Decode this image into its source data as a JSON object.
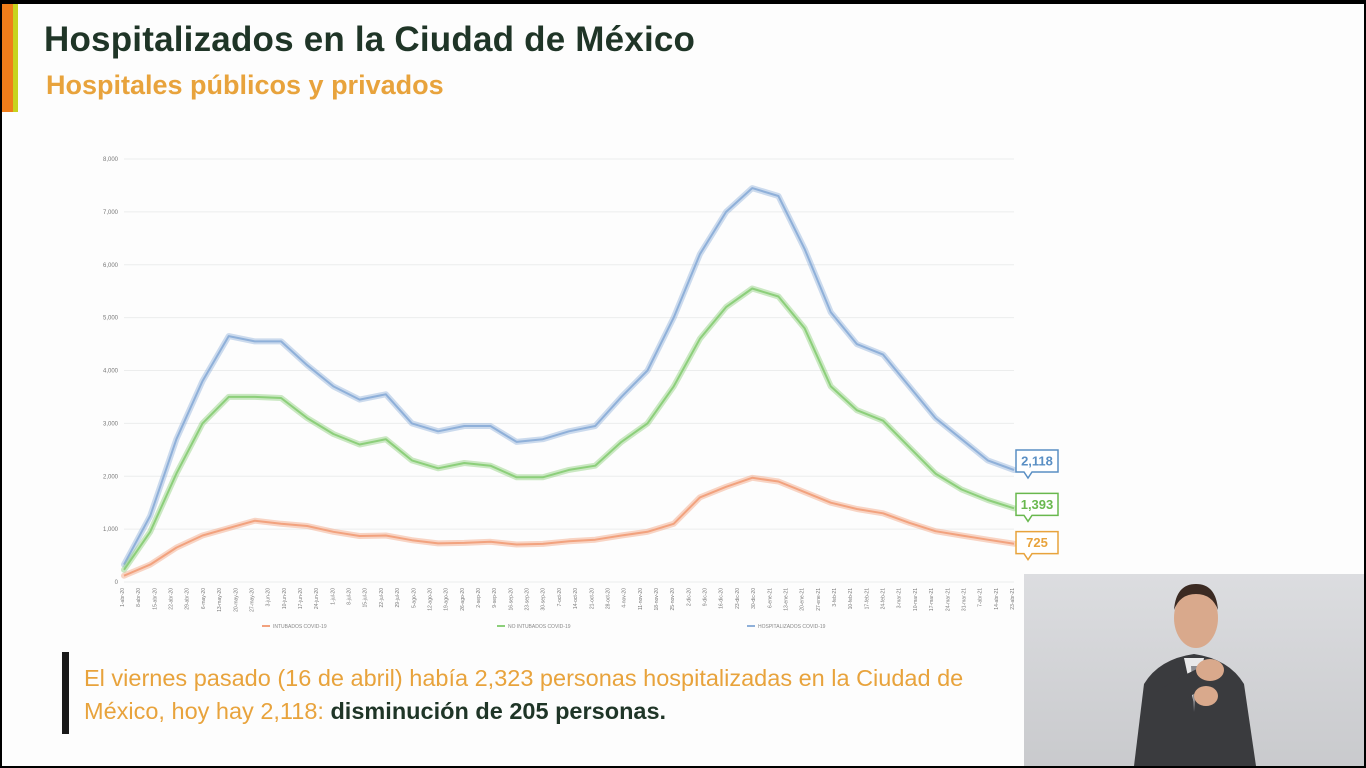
{
  "header": {
    "title": "Hospitalizados en la Ciudad de México",
    "subtitle": "Hospitales públicos y privados"
  },
  "callout": {
    "text_main": "El viernes pasado (16 de abril) había 2,323 personas hospitalizadas en la Ciudad de México, hoy hay 2,118: ",
    "text_strong": "disminución de 205 personas."
  },
  "colors": {
    "hospitalizados": "#8fb0d9",
    "no_intubados": "#8ccf7a",
    "intubados": "#f2a27e",
    "label_hosp": "#5a8fc4",
    "label_no_int": "#69b84e",
    "label_int": "#e8a33c"
  },
  "interpreter": {
    "icon": "sign-language-interpreter-video"
  },
  "chart_data": {
    "type": "line",
    "ylim": [
      0,
      8000
    ],
    "yticks": [
      0,
      1000,
      2000,
      3000,
      4000,
      5000,
      6000,
      7000,
      8000
    ],
    "ytick_labels": [
      "0",
      "1,000",
      "2,000",
      "3,000",
      "4,000",
      "5,000",
      "6,000",
      "7,000",
      "8,000"
    ],
    "xticks": [
      "1-abr-20",
      "8-abr-20",
      "15-abr-20",
      "22-abr-20",
      "29-abr-20",
      "6-may-20",
      "13-may-20",
      "20-may-20",
      "27-may-20",
      "3-jun-20",
      "10-jun-20",
      "17-jun-20",
      "24-jun-20",
      "1-jul-20",
      "8-jul-20",
      "15-jul-20",
      "22-jul-20",
      "29-jul-20",
      "5-ago-20",
      "12-ago-20",
      "19-ago-20",
      "26-ago-20",
      "2-sep-20",
      "9-sep-20",
      "16-sep-20",
      "23-sep-20",
      "30-sep-20",
      "7-oct-20",
      "14-oct-20",
      "21-oct-20",
      "28-oct-20",
      "4-nov-20",
      "11-nov-20",
      "18-nov-20",
      "25-nov-20",
      "2-dic-20",
      "9-dic-20",
      "16-dic-20",
      "23-dic-20",
      "30-dic-20",
      "6-ene-21",
      "13-ene-21",
      "20-ene-21",
      "27-ene-21",
      "3-feb-21",
      "10-feb-21",
      "17-feb-21",
      "24-feb-21",
      "3-mar-21",
      "10-mar-21",
      "17-mar-21",
      "24-mar-21",
      "31-mar-21",
      "7-abr-21",
      "14-abr-21",
      "23-abr-21"
    ],
    "series": [
      {
        "name": "HOSPITALIZADOS COVID-19",
        "final_label": "2,118",
        "values": [
          330,
          1250,
          2700,
          3800,
          4650,
          4550,
          4550,
          4100,
          3700,
          3450,
          3550,
          3000,
          2850,
          2950,
          2950,
          2650,
          2700,
          2850,
          2950,
          3500,
          4000,
          5000,
          6200,
          7000,
          7450,
          7300,
          6300,
          5100,
          4500,
          4300,
          3700,
          3100,
          2700,
          2300,
          2118
        ]
      },
      {
        "name": "NO INTUBADOS COVID-19",
        "final_label": "1,393",
        "values": [
          230,
          950,
          2050,
          3000,
          3500,
          3500,
          3480,
          3100,
          2800,
          2600,
          2700,
          2300,
          2150,
          2250,
          2200,
          1980,
          1980,
          2120,
          2200,
          2650,
          3000,
          3700,
          4600,
          5200,
          5550,
          5400,
          4800,
          3700,
          3250,
          3050,
          2550,
          2050,
          1750,
          1550,
          1393
        ]
      },
      {
        "name": "INTUBADOS COVID-19",
        "final_label": "725",
        "values": [
          120,
          330,
          650,
          880,
          1020,
          1160,
          1100,
          1060,
          950,
          870,
          880,
          790,
          730,
          740,
          760,
          710,
          720,
          770,
          800,
          880,
          950,
          1100,
          1600,
          1800,
          1970,
          1900,
          1700,
          1500,
          1380,
          1300,
          1120,
          960,
          880,
          800,
          725
        ]
      }
    ]
  }
}
